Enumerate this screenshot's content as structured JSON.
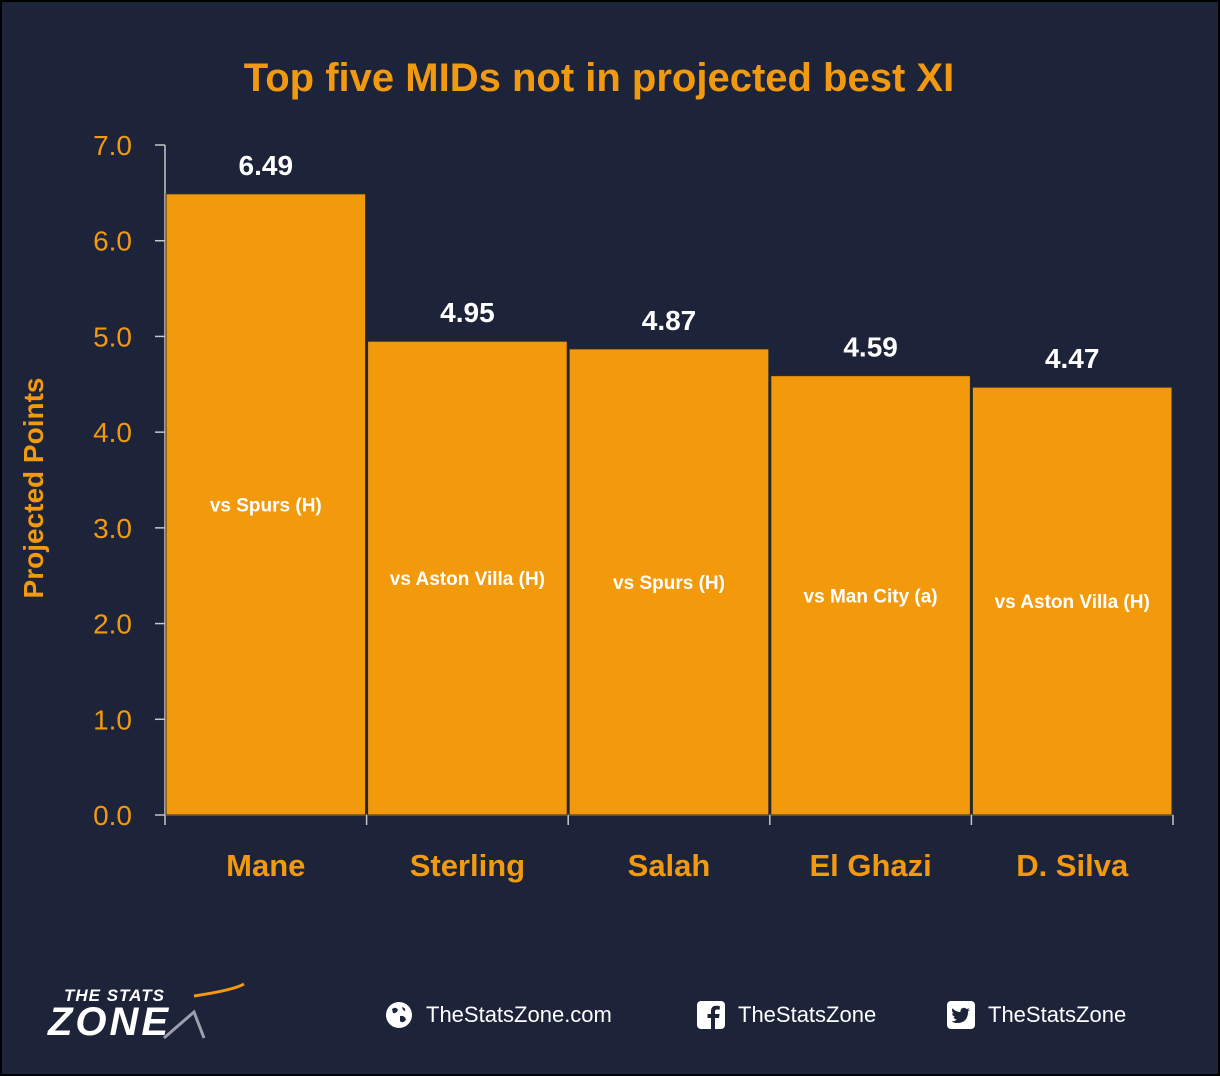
{
  "chart_data": {
    "type": "bar",
    "title": "Top five MIDs not in projected best XI",
    "ylabel": "Projected Points",
    "xlabel": "",
    "ylim": [
      0,
      7
    ],
    "yticks": [
      "0.0",
      "1.0",
      "2.0",
      "3.0",
      "4.0",
      "5.0",
      "6.0",
      "7.0"
    ],
    "categories": [
      "Mane",
      "Sterling",
      "Salah",
      "El Ghazi",
      "D. Silva"
    ],
    "values": [
      6.49,
      4.95,
      4.87,
      4.59,
      4.47
    ],
    "value_labels": [
      "6.49",
      "4.95",
      "4.87",
      "4.59",
      "4.47"
    ],
    "bar_annotations": [
      "vs Spurs (H)",
      "vs Aston Villa (H)",
      "vs Spurs (H)",
      "vs Man City (a)",
      "vs Aston Villa (H)"
    ],
    "colors": {
      "bar": "#f29a0c",
      "accent": "#f19a0f",
      "background": "#1d2338",
      "value_label": "#ffffff"
    }
  },
  "footer": {
    "logo_top": "THE STATS",
    "logo_main": "ZONE",
    "website": "TheStatsZone.com",
    "facebook": "TheStatsZone",
    "twitter": "TheStatsZone",
    "icons": [
      "globe-icon",
      "facebook-icon",
      "twitter-icon"
    ]
  }
}
